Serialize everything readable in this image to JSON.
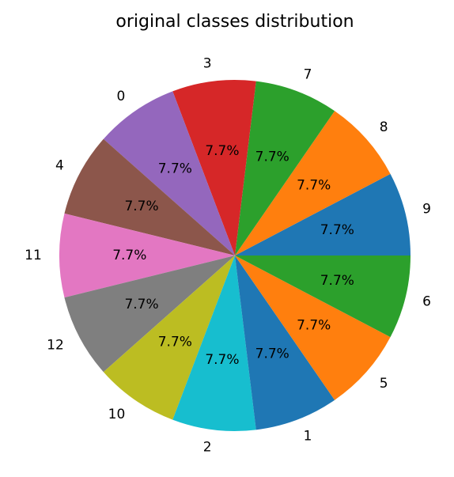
{
  "chart_data": {
    "type": "pie",
    "title": "original classes distribution",
    "labels": [
      "9",
      "8",
      "7",
      "3",
      "0",
      "4",
      "11",
      "12",
      "10",
      "2",
      "1",
      "5",
      "6"
    ],
    "values": [
      1,
      1,
      1,
      1,
      1,
      1,
      1,
      1,
      1,
      1,
      1,
      1,
      1
    ],
    "percent_labels": [
      "7.7%",
      "7.7%",
      "7.7%",
      "7.7%",
      "7.7%",
      "7.7%",
      "7.7%",
      "7.7%",
      "7.7%",
      "7.7%",
      "7.7%",
      "7.7%",
      "7.7%"
    ],
    "colors": [
      "#1f77b4",
      "#ff7f0e",
      "#2ca02c",
      "#d62728",
      "#9467bd",
      "#8c564b",
      "#e377c2",
      "#7f7f7f",
      "#bcbd22",
      "#17becf",
      "#1f77b4",
      "#ff7f0e",
      "#2ca02c"
    ],
    "start_angle_deg": 0,
    "direction": "counterclockwise"
  }
}
